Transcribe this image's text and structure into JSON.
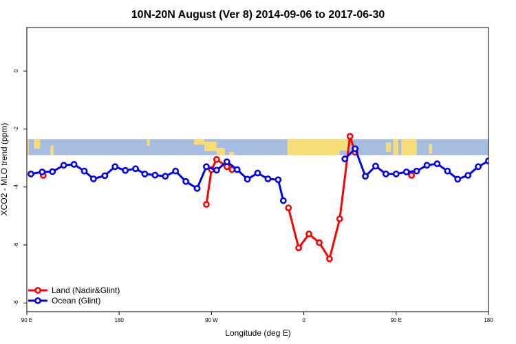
{
  "chart_data": {
    "type": "line",
    "title": "10N-20N August (Ver 8)   2014-09-06 to 2017-06-30",
    "xlabel": "Longitude (deg E)",
    "ylabel": "XCO2 - MLO trend (ppm)",
    "x_ticks": [
      {
        "value": 90,
        "label": "90 E"
      },
      {
        "value": 180,
        "label": "180"
      },
      {
        "value": 270,
        "label": "90 W"
      },
      {
        "value": 360,
        "label": "0"
      },
      {
        "value": 450,
        "label": "90 E"
      },
      {
        "value": 540,
        "label": "180"
      }
    ],
    "y_ticks": [
      {
        "value": 0,
        "label": "0"
      },
      {
        "value": -2,
        "label": "-2"
      },
      {
        "value": -4,
        "label": "-4"
      },
      {
        "value": -6,
        "label": "-6"
      },
      {
        "value": -8,
        "label": "-8"
      }
    ],
    "xlim": [
      90,
      540
    ],
    "ylim": [
      -8.3,
      1.5
    ],
    "map_band": {
      "ymin": -2.9,
      "ymax": -2.35,
      "ocean_color": "#a4bde0",
      "land_color": "#f7dc78"
    },
    "legend_position": "bottom-left",
    "series": [
      {
        "name": "Land (Nadir&Glint)",
        "color": "#ff0000",
        "segments": [
          [
            [
              106,
              -3.6
            ]
          ],
          [
            [
              265,
              -4.6
            ],
            [
              270,
              -3.4
            ],
            [
              275,
              -3.05
            ],
            [
              285,
              -3.3
            ],
            [
              290,
              -3.4
            ]
          ],
          [
            [
              345,
              -4.72
            ],
            [
              355,
              -6.1
            ],
            [
              365,
              -5.62
            ],
            [
              375,
              -5.92
            ],
            [
              385,
              -6.48
            ],
            [
              395,
              -5.1
            ],
            [
              405,
              -2.25
            ],
            [
              410,
              -2.8
            ]
          ],
          [
            [
              465,
              -3.6
            ]
          ]
        ]
      },
      {
        "name": "Ocean (Glint)",
        "color": "#0000ee",
        "segments": [
          [
            [
              94,
              -3.55
            ],
            [
              105,
              -3.48
            ],
            [
              115,
              -3.47
            ],
            [
              126,
              -3.25
            ],
            [
              136,
              -3.22
            ],
            [
              146,
              -3.45
            ],
            [
              155,
              -3.72
            ],
            [
              166,
              -3.61
            ],
            [
              176,
              -3.3
            ],
            [
              186,
              -3.43
            ],
            [
              196,
              -3.37
            ],
            [
              205,
              -3.55
            ],
            [
              215,
              -3.59
            ],
            [
              225,
              -3.63
            ],
            [
              235,
              -3.45
            ],
            [
              245,
              -3.81
            ],
            [
              256,
              -4.05
            ],
            [
              265,
              -3.3
            ],
            [
              275,
              -3.42
            ],
            [
              285,
              -3.13
            ],
            [
              295,
              -3.4
            ],
            [
              305,
              -3.73
            ],
            [
              315,
              -3.52
            ],
            [
              325,
              -3.72
            ],
            [
              335,
              -3.75
            ],
            [
              340,
              -4.47
            ]
          ],
          [
            [
              400,
              -3.03
            ],
            [
              410,
              -2.68
            ],
            [
              420,
              -3.63
            ],
            [
              430,
              -3.28
            ],
            [
              440,
              -3.55
            ],
            [
              450,
              -3.55
            ],
            [
              460,
              -3.48
            ],
            [
              470,
              -3.45
            ],
            [
              480,
              -3.25
            ],
            [
              490,
              -3.2
            ],
            [
              500,
              -3.45
            ],
            [
              510,
              -3.73
            ],
            [
              520,
              -3.6
            ],
            [
              530,
              -3.3
            ],
            [
              540,
              -3.1
            ]
          ]
        ]
      }
    ]
  }
}
